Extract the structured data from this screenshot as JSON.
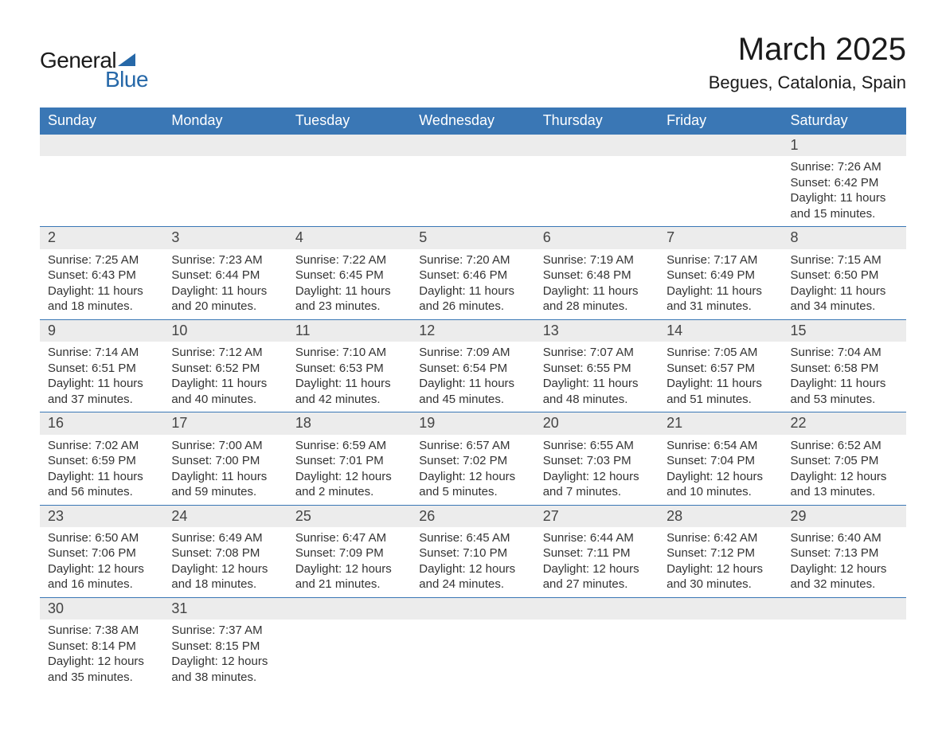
{
  "brand": {
    "word1": "General",
    "word2": "Blue",
    "word1_color": "#1a1a1a",
    "word2_color": "#2668a8",
    "triangle_color": "#2668a8",
    "font_size_pt": 21
  },
  "title": {
    "month": "March 2025",
    "location": "Begues, Catalonia, Spain",
    "month_fontsize_pt": 30,
    "location_fontsize_pt": 17,
    "color": "#1a1a1a"
  },
  "calendar": {
    "header_bg": "#3a77b5",
    "header_fg": "#ffffff",
    "daynum_bg": "#ececec",
    "row_divider": "#3a77b5",
    "body_bg": "#ffffff",
    "text_color": "#333333",
    "body_fontsize_pt": 11,
    "daynum_fontsize_pt": 14,
    "header_fontsize_pt": 14,
    "columns": [
      "Sunday",
      "Monday",
      "Tuesday",
      "Wednesday",
      "Thursday",
      "Friday",
      "Saturday"
    ],
    "weeks": [
      [
        null,
        null,
        null,
        null,
        null,
        null,
        {
          "d": "1",
          "sr": "Sunrise: 7:26 AM",
          "ss": "Sunset: 6:42 PM",
          "dl1": "Daylight: 11 hours",
          "dl2": "and 15 minutes."
        }
      ],
      [
        {
          "d": "2",
          "sr": "Sunrise: 7:25 AM",
          "ss": "Sunset: 6:43 PM",
          "dl1": "Daylight: 11 hours",
          "dl2": "and 18 minutes."
        },
        {
          "d": "3",
          "sr": "Sunrise: 7:23 AM",
          "ss": "Sunset: 6:44 PM",
          "dl1": "Daylight: 11 hours",
          "dl2": "and 20 minutes."
        },
        {
          "d": "4",
          "sr": "Sunrise: 7:22 AM",
          "ss": "Sunset: 6:45 PM",
          "dl1": "Daylight: 11 hours",
          "dl2": "and 23 minutes."
        },
        {
          "d": "5",
          "sr": "Sunrise: 7:20 AM",
          "ss": "Sunset: 6:46 PM",
          "dl1": "Daylight: 11 hours",
          "dl2": "and 26 minutes."
        },
        {
          "d": "6",
          "sr": "Sunrise: 7:19 AM",
          "ss": "Sunset: 6:48 PM",
          "dl1": "Daylight: 11 hours",
          "dl2": "and 28 minutes."
        },
        {
          "d": "7",
          "sr": "Sunrise: 7:17 AM",
          "ss": "Sunset: 6:49 PM",
          "dl1": "Daylight: 11 hours",
          "dl2": "and 31 minutes."
        },
        {
          "d": "8",
          "sr": "Sunrise: 7:15 AM",
          "ss": "Sunset: 6:50 PM",
          "dl1": "Daylight: 11 hours",
          "dl2": "and 34 minutes."
        }
      ],
      [
        {
          "d": "9",
          "sr": "Sunrise: 7:14 AM",
          "ss": "Sunset: 6:51 PM",
          "dl1": "Daylight: 11 hours",
          "dl2": "and 37 minutes."
        },
        {
          "d": "10",
          "sr": "Sunrise: 7:12 AM",
          "ss": "Sunset: 6:52 PM",
          "dl1": "Daylight: 11 hours",
          "dl2": "and 40 minutes."
        },
        {
          "d": "11",
          "sr": "Sunrise: 7:10 AM",
          "ss": "Sunset: 6:53 PM",
          "dl1": "Daylight: 11 hours",
          "dl2": "and 42 minutes."
        },
        {
          "d": "12",
          "sr": "Sunrise: 7:09 AM",
          "ss": "Sunset: 6:54 PM",
          "dl1": "Daylight: 11 hours",
          "dl2": "and 45 minutes."
        },
        {
          "d": "13",
          "sr": "Sunrise: 7:07 AM",
          "ss": "Sunset: 6:55 PM",
          "dl1": "Daylight: 11 hours",
          "dl2": "and 48 minutes."
        },
        {
          "d": "14",
          "sr": "Sunrise: 7:05 AM",
          "ss": "Sunset: 6:57 PM",
          "dl1": "Daylight: 11 hours",
          "dl2": "and 51 minutes."
        },
        {
          "d": "15",
          "sr": "Sunrise: 7:04 AM",
          "ss": "Sunset: 6:58 PM",
          "dl1": "Daylight: 11 hours",
          "dl2": "and 53 minutes."
        }
      ],
      [
        {
          "d": "16",
          "sr": "Sunrise: 7:02 AM",
          "ss": "Sunset: 6:59 PM",
          "dl1": "Daylight: 11 hours",
          "dl2": "and 56 minutes."
        },
        {
          "d": "17",
          "sr": "Sunrise: 7:00 AM",
          "ss": "Sunset: 7:00 PM",
          "dl1": "Daylight: 11 hours",
          "dl2": "and 59 minutes."
        },
        {
          "d": "18",
          "sr": "Sunrise: 6:59 AM",
          "ss": "Sunset: 7:01 PM",
          "dl1": "Daylight: 12 hours",
          "dl2": "and 2 minutes."
        },
        {
          "d": "19",
          "sr": "Sunrise: 6:57 AM",
          "ss": "Sunset: 7:02 PM",
          "dl1": "Daylight: 12 hours",
          "dl2": "and 5 minutes."
        },
        {
          "d": "20",
          "sr": "Sunrise: 6:55 AM",
          "ss": "Sunset: 7:03 PM",
          "dl1": "Daylight: 12 hours",
          "dl2": "and 7 minutes."
        },
        {
          "d": "21",
          "sr": "Sunrise: 6:54 AM",
          "ss": "Sunset: 7:04 PM",
          "dl1": "Daylight: 12 hours",
          "dl2": "and 10 minutes."
        },
        {
          "d": "22",
          "sr": "Sunrise: 6:52 AM",
          "ss": "Sunset: 7:05 PM",
          "dl1": "Daylight: 12 hours",
          "dl2": "and 13 minutes."
        }
      ],
      [
        {
          "d": "23",
          "sr": "Sunrise: 6:50 AM",
          "ss": "Sunset: 7:06 PM",
          "dl1": "Daylight: 12 hours",
          "dl2": "and 16 minutes."
        },
        {
          "d": "24",
          "sr": "Sunrise: 6:49 AM",
          "ss": "Sunset: 7:08 PM",
          "dl1": "Daylight: 12 hours",
          "dl2": "and 18 minutes."
        },
        {
          "d": "25",
          "sr": "Sunrise: 6:47 AM",
          "ss": "Sunset: 7:09 PM",
          "dl1": "Daylight: 12 hours",
          "dl2": "and 21 minutes."
        },
        {
          "d": "26",
          "sr": "Sunrise: 6:45 AM",
          "ss": "Sunset: 7:10 PM",
          "dl1": "Daylight: 12 hours",
          "dl2": "and 24 minutes."
        },
        {
          "d": "27",
          "sr": "Sunrise: 6:44 AM",
          "ss": "Sunset: 7:11 PM",
          "dl1": "Daylight: 12 hours",
          "dl2": "and 27 minutes."
        },
        {
          "d": "28",
          "sr": "Sunrise: 6:42 AM",
          "ss": "Sunset: 7:12 PM",
          "dl1": "Daylight: 12 hours",
          "dl2": "and 30 minutes."
        },
        {
          "d": "29",
          "sr": "Sunrise: 6:40 AM",
          "ss": "Sunset: 7:13 PM",
          "dl1": "Daylight: 12 hours",
          "dl2": "and 32 minutes."
        }
      ],
      [
        {
          "d": "30",
          "sr": "Sunrise: 7:38 AM",
          "ss": "Sunset: 8:14 PM",
          "dl1": "Daylight: 12 hours",
          "dl2": "and 35 minutes."
        },
        {
          "d": "31",
          "sr": "Sunrise: 7:37 AM",
          "ss": "Sunset: 8:15 PM",
          "dl1": "Daylight: 12 hours",
          "dl2": "and 38 minutes."
        },
        null,
        null,
        null,
        null,
        null
      ]
    ]
  }
}
